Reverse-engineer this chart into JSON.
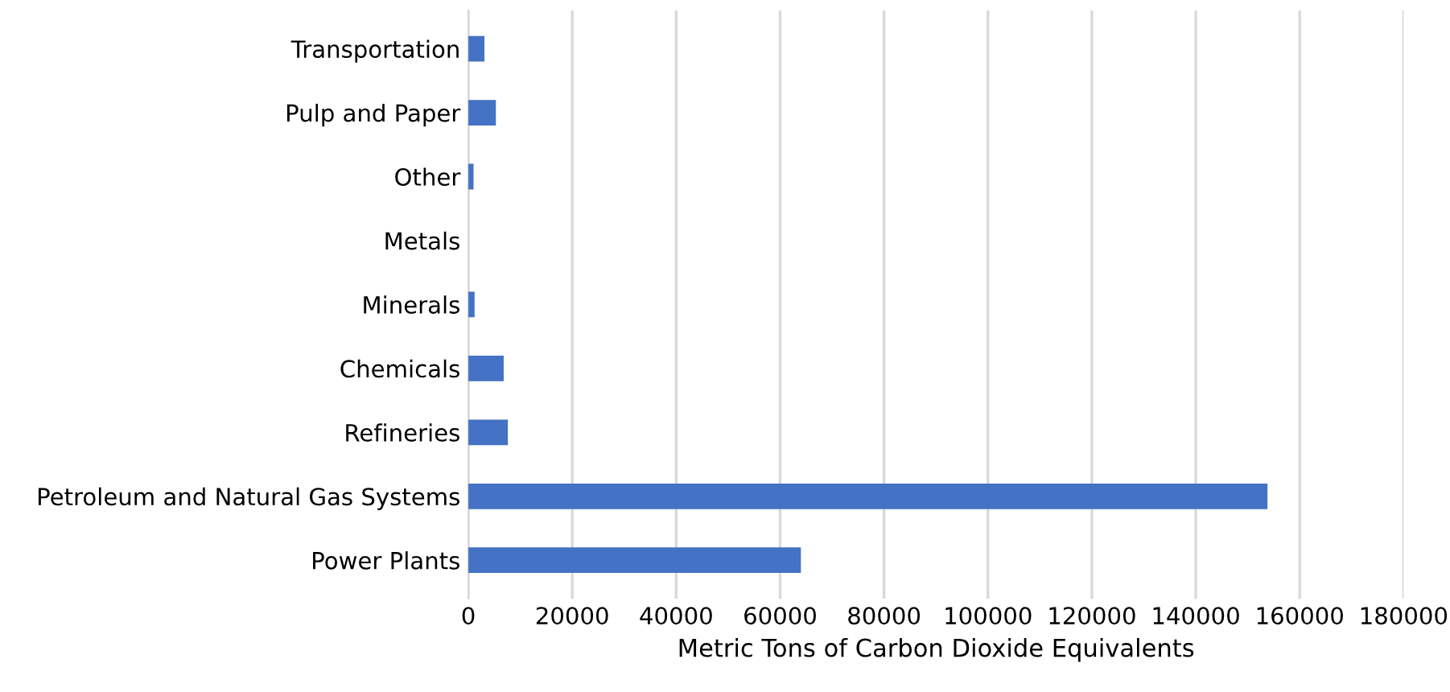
{
  "chart_data": {
    "type": "bar",
    "orientation": "horizontal",
    "xlabel": "Metric Tons of Carbon Dioxide Equivalents",
    "categories": [
      "Transportation",
      "Pulp and Paper",
      "Other",
      "Metals",
      "Minerals",
      "Chemicals",
      "Refineries",
      "Petroleum and Natural Gas Systems",
      "Power Plants"
    ],
    "values": [
      3100,
      5300,
      1000,
      0,
      1200,
      6800,
      7600,
      153800,
      64000
    ],
    "color": "#4472c4",
    "xlim": [
      0,
      180000
    ],
    "xticks": [
      0,
      20000,
      40000,
      60000,
      80000,
      100000,
      120000,
      140000,
      160000,
      180000
    ],
    "grid": "x",
    "legend": false
  }
}
